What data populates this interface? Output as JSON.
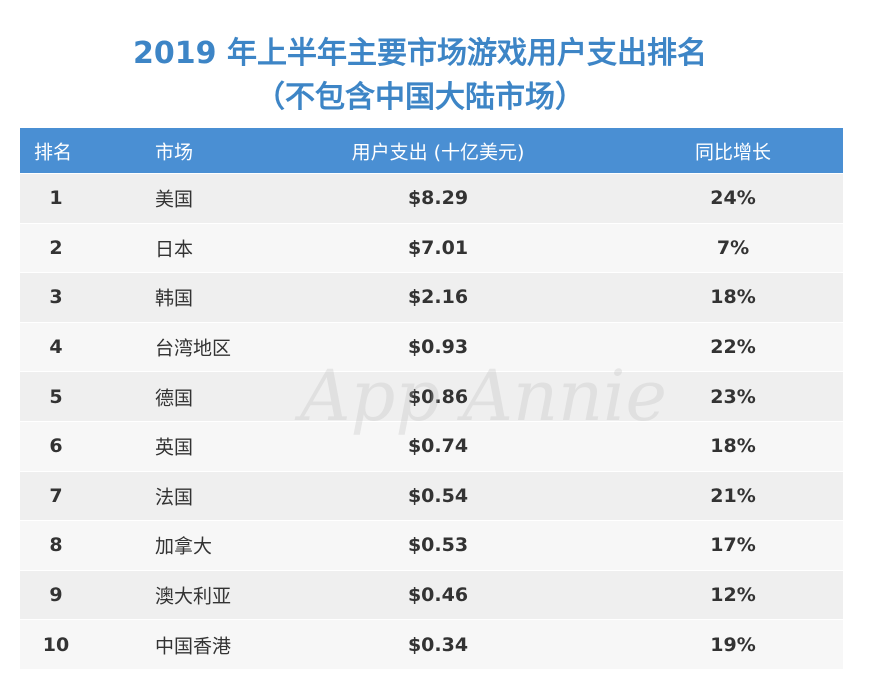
{
  "header": {
    "title": [
      "2019 年上半年主要市场游戏用户支出排名",
      "（不包含中国大陆市场）"
    ]
  },
  "table": {
    "columns": [
      "排名",
      "市场",
      "用户支出 (十亿美元)",
      "同比增长"
    ],
    "rows": [
      [
        "1",
        "美国",
        "$8.29",
        "24%"
      ],
      [
        "2",
        "日本",
        "$7.01",
        "7%"
      ],
      [
        "3",
        "韩国",
        "$2.16",
        "18%"
      ],
      [
        "4",
        "台湾地区",
        "$0.93",
        "22%"
      ],
      [
        "5",
        "德国",
        "$0.86",
        "23%"
      ],
      [
        "6",
        "英国",
        "$0.74",
        "18%"
      ],
      [
        "7",
        "法国",
        "$0.54",
        "21%"
      ],
      [
        "8",
        "加拿大",
        "$0.53",
        "17%"
      ],
      [
        "9",
        "澳大利亚",
        "$0.46",
        "12%"
      ],
      [
        "10",
        "中国香港",
        "$0.34",
        "19%"
      ]
    ]
  },
  "watermark": "App Annie"
}
